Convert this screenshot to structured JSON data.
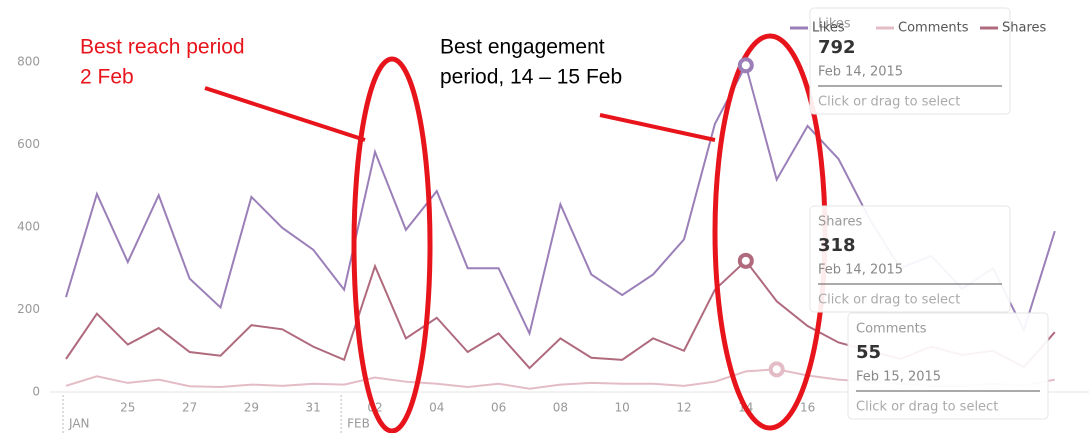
{
  "chart_data": {
    "type": "line",
    "categories": [
      null,
      null,
      "25",
      null,
      "27",
      null,
      "29",
      null,
      "31",
      null,
      "02",
      null,
      "04",
      null,
      "06",
      null,
      "08",
      null,
      "10",
      null,
      "12",
      null,
      "14",
      null,
      "16",
      null,
      null,
      null,
      null,
      null,
      null,
      null,
      null
    ],
    "month_labels": [
      "JAN",
      null,
      null,
      null,
      null,
      null,
      null,
      null,
      null,
      "FEB",
      null,
      null,
      null,
      null,
      null,
      null,
      null,
      null,
      null,
      null,
      null,
      null,
      null,
      null,
      null,
      null,
      null,
      null,
      null,
      null,
      null,
      null,
      null
    ],
    "series": [
      {
        "name": "Likes",
        "color": "#9b7fb8",
        "values": [
          230,
          480,
          315,
          477,
          275,
          205,
          473,
          398,
          345,
          248,
          582,
          393,
          487,
          300,
          300,
          142,
          455,
          285,
          235,
          285,
          370,
          650,
          792,
          515,
          645,
          565,
          420,
          300,
          330,
          250,
          300,
          150,
          390
        ]
      },
      {
        "name": "Comments",
        "color": "#e3bcc6",
        "values": [
          15,
          38,
          22,
          30,
          14,
          12,
          18,
          15,
          20,
          18,
          35,
          25,
          20,
          12,
          20,
          8,
          18,
          22,
          20,
          20,
          15,
          25,
          50,
          55,
          40,
          30,
          25,
          20,
          15,
          15,
          20,
          15,
          30
        ]
      },
      {
        "name": "Shares",
        "color": "#b06a7e",
        "values": [
          80,
          190,
          115,
          155,
          97,
          88,
          162,
          152,
          110,
          78,
          305,
          130,
          180,
          97,
          142,
          58,
          130,
          83,
          78,
          130,
          100,
          248,
          318,
          220,
          160,
          120,
          100,
          80,
          110,
          90,
          100,
          60,
          145
        ]
      }
    ],
    "ylim": [
      0,
      800
    ],
    "yticks": [
      0,
      200,
      400,
      600,
      800
    ],
    "tooltips": [
      {
        "series": 0,
        "index": 22,
        "date": "Feb 14, 2015",
        "hint": "Click or drag to select"
      },
      {
        "series": 2,
        "index": 22,
        "date": "Feb 14, 2015",
        "hint": "Click or drag to select"
      },
      {
        "series": 1,
        "index": 23,
        "date": "Feb 15, 2015",
        "hint": "Click or drag to select"
      }
    ],
    "annotations": [
      {
        "lines": [
          "Best reach period",
          "2 Feb"
        ],
        "color": "#e8141c"
      },
      {
        "lines": [
          "Best engagement",
          "period, 14 – 15 Feb"
        ],
        "color": "#000000"
      }
    ]
  }
}
